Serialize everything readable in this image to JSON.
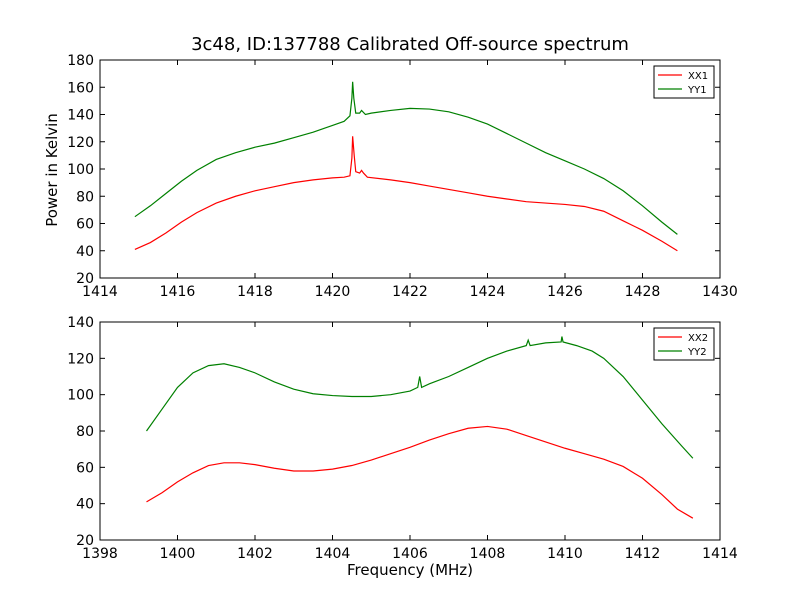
{
  "figure": {
    "title": "3c48, ID:137788 Calibrated Off-source spectrum",
    "xlabel": "Frequency (MHz)",
    "ylabel": "Power in Kelvin"
  },
  "chart_data": [
    {
      "type": "line",
      "panel": "top",
      "xlim": [
        1414,
        1430
      ],
      "ylim": [
        20,
        180
      ],
      "xticks": [
        1414,
        1416,
        1418,
        1420,
        1422,
        1424,
        1426,
        1428,
        1430
      ],
      "yticks": [
        20,
        40,
        60,
        80,
        100,
        120,
        140,
        160,
        180
      ],
      "legend_position": "top-right",
      "series": [
        {
          "name": "XX1",
          "color": "#ff0000",
          "points": [
            [
              1414.9,
              41
            ],
            [
              1415.3,
              46
            ],
            [
              1415.7,
              53
            ],
            [
              1416.1,
              61
            ],
            [
              1416.5,
              68
            ],
            [
              1417.0,
              75
            ],
            [
              1417.5,
              80
            ],
            [
              1418.0,
              84
            ],
            [
              1418.5,
              87
            ],
            [
              1419.0,
              90
            ],
            [
              1419.5,
              92
            ],
            [
              1420.0,
              93.5
            ],
            [
              1420.3,
              94
            ],
            [
              1420.45,
              95
            ],
            [
              1420.5,
              108
            ],
            [
              1420.52,
              124
            ],
            [
              1420.56,
              110
            ],
            [
              1420.6,
              98
            ],
            [
              1420.7,
              97
            ],
            [
              1420.75,
              99
            ],
            [
              1420.8,
              97
            ],
            [
              1420.9,
              94
            ],
            [
              1421.5,
              92
            ],
            [
              1422.0,
              90
            ],
            [
              1422.5,
              87.5
            ],
            [
              1423.0,
              85
            ],
            [
              1423.5,
              82.5
            ],
            [
              1424.0,
              80
            ],
            [
              1424.5,
              78
            ],
            [
              1425.0,
              76
            ],
            [
              1425.5,
              75
            ],
            [
              1426.0,
              74
            ],
            [
              1426.5,
              72.5
            ],
            [
              1427.0,
              69
            ],
            [
              1427.5,
              62
            ],
            [
              1428.0,
              55
            ],
            [
              1428.5,
              47
            ],
            [
              1428.9,
              40
            ]
          ]
        },
        {
          "name": "YY1",
          "color": "#008000",
          "points": [
            [
              1414.9,
              65
            ],
            [
              1415.3,
              73
            ],
            [
              1415.7,
              82
            ],
            [
              1416.1,
              91
            ],
            [
              1416.5,
              99
            ],
            [
              1417.0,
              107
            ],
            [
              1417.5,
              112
            ],
            [
              1418.0,
              116
            ],
            [
              1418.5,
              119
            ],
            [
              1419.0,
              123
            ],
            [
              1419.5,
              127
            ],
            [
              1420.0,
              132
            ],
            [
              1420.3,
              135
            ],
            [
              1420.45,
              139
            ],
            [
              1420.5,
              152
            ],
            [
              1420.52,
              164
            ],
            [
              1420.55,
              152
            ],
            [
              1420.6,
              141
            ],
            [
              1420.7,
              141
            ],
            [
              1420.75,
              143
            ],
            [
              1420.85,
              140
            ],
            [
              1421.0,
              141
            ],
            [
              1421.5,
              143
            ],
            [
              1422.0,
              144.5
            ],
            [
              1422.5,
              144
            ],
            [
              1423.0,
              142
            ],
            [
              1423.5,
              138
            ],
            [
              1424.0,
              133
            ],
            [
              1424.5,
              126
            ],
            [
              1425.0,
              119
            ],
            [
              1425.5,
              112
            ],
            [
              1426.0,
              106
            ],
            [
              1426.5,
              100
            ],
            [
              1427.0,
              93
            ],
            [
              1427.5,
              84
            ],
            [
              1428.0,
              73
            ],
            [
              1428.5,
              61
            ],
            [
              1428.9,
              52
            ]
          ]
        }
      ]
    },
    {
      "type": "line",
      "panel": "bottom",
      "xlim": [
        1398,
        1414
      ],
      "ylim": [
        20,
        140
      ],
      "xticks": [
        1398,
        1400,
        1402,
        1404,
        1406,
        1408,
        1410,
        1412,
        1414
      ],
      "yticks": [
        20,
        40,
        60,
        80,
        100,
        120,
        140
      ],
      "legend_position": "top-right",
      "series": [
        {
          "name": "XX2",
          "color": "#ff0000",
          "points": [
            [
              1399.2,
              41
            ],
            [
              1399.6,
              46
            ],
            [
              1400.0,
              52
            ],
            [
              1400.4,
              57
            ],
            [
              1400.8,
              61
            ],
            [
              1401.2,
              62.5
            ],
            [
              1401.6,
              62.5
            ],
            [
              1402.0,
              61.5
            ],
            [
              1402.5,
              59.5
            ],
            [
              1403.0,
              58
            ],
            [
              1403.5,
              58
            ],
            [
              1404.0,
              59
            ],
            [
              1404.5,
              61
            ],
            [
              1405.0,
              64
            ],
            [
              1405.5,
              67.5
            ],
            [
              1406.0,
              71
            ],
            [
              1406.5,
              75
            ],
            [
              1407.0,
              78.5
            ],
            [
              1407.5,
              81.5
            ],
            [
              1408.0,
              82.5
            ],
            [
              1408.5,
              81
            ],
            [
              1409.0,
              77.5
            ],
            [
              1409.5,
              74
            ],
            [
              1410.0,
              70.5
            ],
            [
              1410.5,
              67.5
            ],
            [
              1411.0,
              64.5
            ],
            [
              1411.5,
              60.5
            ],
            [
              1412.0,
              54
            ],
            [
              1412.5,
              45
            ],
            [
              1412.9,
              37
            ],
            [
              1413.3,
              32
            ]
          ]
        },
        {
          "name": "YY2",
          "color": "#008000",
          "points": [
            [
              1399.2,
              80
            ],
            [
              1399.6,
              92
            ],
            [
              1400.0,
              104
            ],
            [
              1400.4,
              112
            ],
            [
              1400.8,
              116
            ],
            [
              1401.2,
              117
            ],
            [
              1401.6,
              115
            ],
            [
              1402.0,
              112
            ],
            [
              1402.5,
              107
            ],
            [
              1403.0,
              103
            ],
            [
              1403.5,
              100.5
            ],
            [
              1404.0,
              99.5
            ],
            [
              1404.5,
              99
            ],
            [
              1405.0,
              99
            ],
            [
              1405.5,
              100
            ],
            [
              1406.0,
              102
            ],
            [
              1406.2,
              104
            ],
            [
              1406.25,
              110
            ],
            [
              1406.3,
              104
            ],
            [
              1406.5,
              106
            ],
            [
              1407.0,
              110
            ],
            [
              1407.5,
              115
            ],
            [
              1408.0,
              120
            ],
            [
              1408.5,
              124
            ],
            [
              1409.0,
              127
            ],
            [
              1409.05,
              130
            ],
            [
              1409.1,
              127
            ],
            [
              1409.5,
              128.5
            ],
            [
              1409.9,
              129
            ],
            [
              1409.92,
              132
            ],
            [
              1409.95,
              129
            ],
            [
              1410.3,
              127
            ],
            [
              1410.7,
              124
            ],
            [
              1411.0,
              120
            ],
            [
              1411.5,
              110
            ],
            [
              1412.0,
              97
            ],
            [
              1412.5,
              84
            ],
            [
              1413.0,
              72
            ],
            [
              1413.3,
              65
            ]
          ]
        }
      ]
    }
  ]
}
